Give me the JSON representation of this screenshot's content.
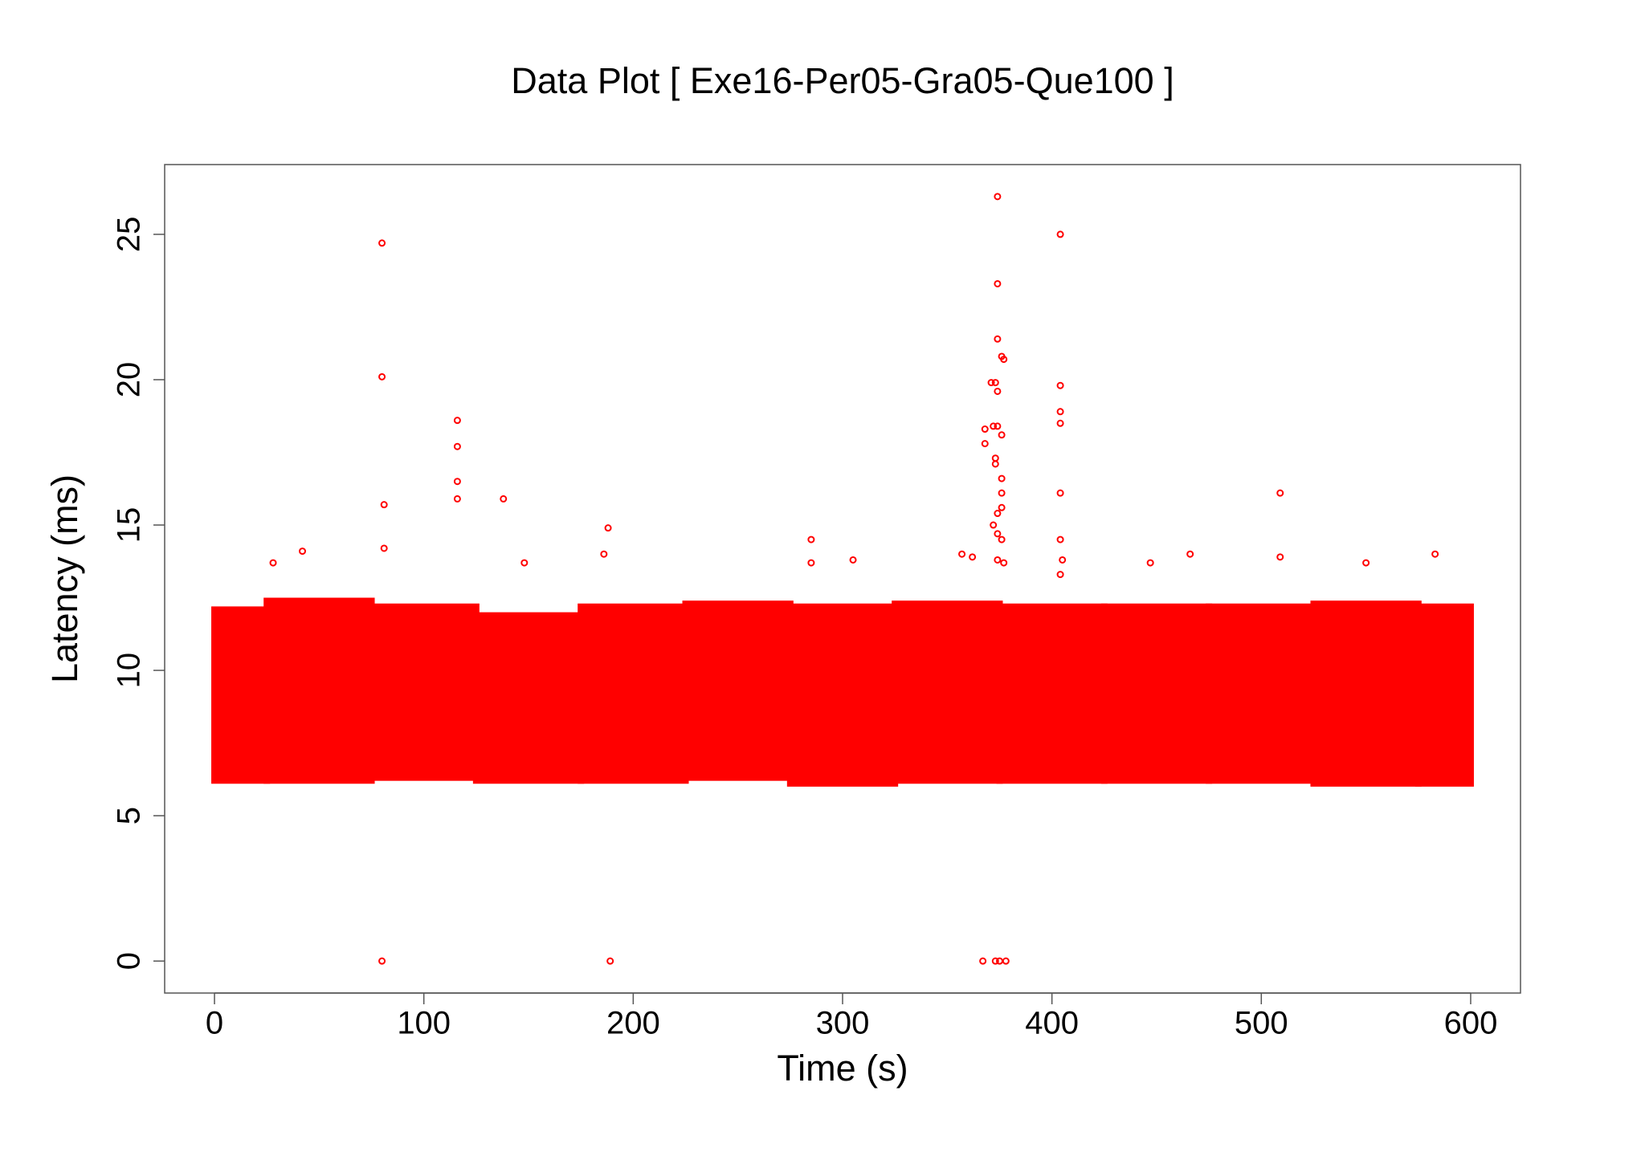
{
  "chart_data": {
    "type": "scatter",
    "title": "Data Plot [ Exe16-Per05-Gra05-Que100 ]",
    "x_label": "Time (s)",
    "y_label": "Latency (ms)",
    "color": "#ff0000",
    "xlim": [
      -23.8,
      623.8
    ],
    "xticks": [
      0,
      100,
      200,
      300,
      400,
      500,
      600
    ],
    "ylim": [
      -1.1,
      27.4
    ],
    "yticks": [
      0,
      5,
      10,
      15,
      20,
      25
    ],
    "band": {
      "x": [
        0,
        50,
        100,
        150,
        200,
        250,
        300,
        350,
        400,
        450,
        500,
        550,
        600
      ],
      "lower": [
        6.1,
        6.1,
        6.2,
        6.1,
        6.1,
        6.2,
        6.0,
        6.1,
        6.1,
        6.1,
        6.1,
        6.0,
        6.0
      ],
      "upper": [
        12.2,
        12.5,
        12.3,
        12.0,
        12.3,
        12.4,
        12.3,
        12.4,
        12.3,
        12.3,
        12.3,
        12.4,
        12.3
      ]
    },
    "x": [
      80,
      80,
      81,
      81,
      80,
      116,
      116,
      116,
      116,
      138,
      188,
      186,
      189,
      285,
      285,
      305,
      374,
      374,
      374,
      376,
      377,
      371,
      373,
      374,
      368,
      372,
      374,
      376,
      368,
      373,
      373,
      376,
      376,
      376,
      374,
      372,
      374,
      376,
      374,
      377,
      367,
      373,
      375,
      378,
      404,
      404,
      404,
      404,
      404,
      404,
      405,
      404,
      509,
      509,
      42,
      357,
      362,
      466,
      583,
      550,
      447,
      148,
      28
    ],
    "y": [
      24.7,
      20.1,
      15.7,
      14.2,
      0,
      18.6,
      17.7,
      16.5,
      15.9,
      15.9,
      14.9,
      14,
      0,
      14.5,
      13.7,
      13.8,
      26.3,
      23.3,
      21.4,
      20.8,
      20.7,
      19.9,
      19.9,
      19.6,
      18.3,
      18.4,
      18.4,
      18.1,
      17.8,
      17.3,
      17.1,
      16.6,
      16.1,
      15.6,
      15.4,
      15,
      14.7,
      14.5,
      13.8,
      13.7,
      0,
      0,
      0,
      0,
      25,
      19.8,
      18.9,
      18.5,
      16.1,
      14.5,
      13.8,
      13.3,
      16.1,
      13.9,
      14.1,
      14,
      13.9,
      14,
      14,
      13.7,
      13.7,
      13.7,
      13.7
    ]
  }
}
